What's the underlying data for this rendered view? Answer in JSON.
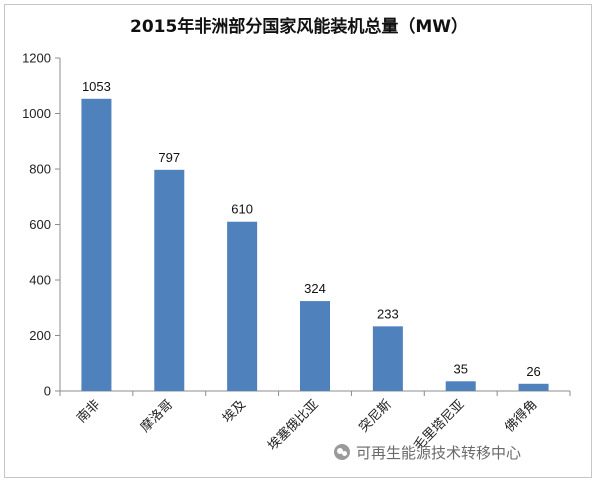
{
  "chart_data": {
    "type": "bar",
    "title": "2015年非洲部分国家风能装机总量（MW）",
    "categories": [
      "南非",
      "摩洛哥",
      "埃及",
      "埃塞俄比亚",
      "突尼斯",
      "毛里塔尼亚",
      "佛得角"
    ],
    "values": [
      1053,
      797,
      610,
      324,
      233,
      35,
      26
    ],
    "ylim": [
      0,
      1200
    ],
    "yticks": [
      0,
      200,
      400,
      600,
      800,
      1000,
      1200
    ],
    "grid": false,
    "legend": "none",
    "bar_color": "#4f81bd"
  },
  "watermark": {
    "text": "可再生能源技术转移中心",
    "icon": "wechat-icon"
  }
}
